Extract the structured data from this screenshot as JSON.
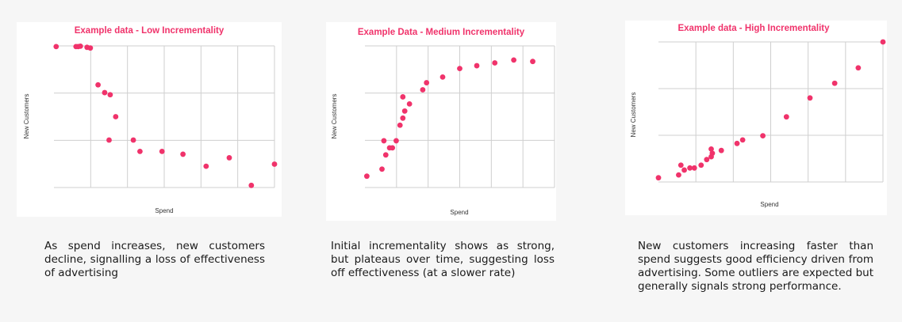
{
  "chart_data": [
    {
      "type": "scatter",
      "title": "Example data - Low Incrementality",
      "xlabel": "Spend",
      "ylabel": "New Customers",
      "xlim": [
        0,
        100
      ],
      "ylim": [
        0,
        100
      ],
      "grid": true,
      "points": [
        {
          "x": 1,
          "y": 99.5
        },
        {
          "x": 10,
          "y": 99.5
        },
        {
          "x": 11,
          "y": 99.5
        },
        {
          "x": 12,
          "y": 99.8
        },
        {
          "x": 15,
          "y": 99
        },
        {
          "x": 16.5,
          "y": 98.5
        },
        {
          "x": 20,
          "y": 72.5
        },
        {
          "x": 23,
          "y": 67
        },
        {
          "x": 25.5,
          "y": 65.5
        },
        {
          "x": 28,
          "y": 50
        },
        {
          "x": 25,
          "y": 33.5
        },
        {
          "x": 36,
          "y": 33.5
        },
        {
          "x": 39,
          "y": 25.5
        },
        {
          "x": 49,
          "y": 25.5
        },
        {
          "x": 58.5,
          "y": 23.5
        },
        {
          "x": 69,
          "y": 15
        },
        {
          "x": 79.5,
          "y": 21
        },
        {
          "x": 89.5,
          "y": 1.5
        },
        {
          "x": 100,
          "y": 16.5
        }
      ]
    },
    {
      "type": "scatter",
      "title": "Example Data - Medium Incrementality",
      "xlabel": "Spend",
      "ylabel": "New Customers",
      "xlim": [
        0,
        100
      ],
      "ylim": [
        0,
        100
      ],
      "grid": true,
      "points": [
        {
          "x": 1,
          "y": 8
        },
        {
          "x": 9,
          "y": 13
        },
        {
          "x": 10,
          "y": 33
        },
        {
          "x": 11,
          "y": 23
        },
        {
          "x": 13,
          "y": 28
        },
        {
          "x": 14.5,
          "y": 28
        },
        {
          "x": 16.5,
          "y": 33
        },
        {
          "x": 18.5,
          "y": 44
        },
        {
          "x": 20,
          "y": 49
        },
        {
          "x": 21,
          "y": 54
        },
        {
          "x": 20,
          "y": 64
        },
        {
          "x": 23.5,
          "y": 59
        },
        {
          "x": 30.5,
          "y": 69
        },
        {
          "x": 32.5,
          "y": 74
        },
        {
          "x": 41,
          "y": 78
        },
        {
          "x": 50,
          "y": 84
        },
        {
          "x": 59,
          "y": 86
        },
        {
          "x": 68.5,
          "y": 88
        },
        {
          "x": 78.5,
          "y": 90
        },
        {
          "x": 88.5,
          "y": 89
        }
      ]
    },
    {
      "type": "scatter",
      "title": "Example data - High Incrementality",
      "xlabel": "Spend",
      "ylabel": "New Customers",
      "xlim": [
        0,
        100
      ],
      "ylim": [
        0,
        100
      ],
      "grid": true,
      "points": [
        {
          "x": 0,
          "y": 3
        },
        {
          "x": 9,
          "y": 5
        },
        {
          "x": 10,
          "y": 12
        },
        {
          "x": 11.5,
          "y": 8.5
        },
        {
          "x": 14,
          "y": 10
        },
        {
          "x": 16,
          "y": 10
        },
        {
          "x": 19,
          "y": 12
        },
        {
          "x": 21.5,
          "y": 16
        },
        {
          "x": 23.5,
          "y": 18
        },
        {
          "x": 24,
          "y": 20.5
        },
        {
          "x": 23.5,
          "y": 23.5
        },
        {
          "x": 28,
          "y": 22.5
        },
        {
          "x": 35,
          "y": 27.5
        },
        {
          "x": 37.5,
          "y": 30
        },
        {
          "x": 46.5,
          "y": 33
        },
        {
          "x": 57,
          "y": 46.5
        },
        {
          "x": 67.5,
          "y": 60
        },
        {
          "x": 78.5,
          "y": 70.5
        },
        {
          "x": 89,
          "y": 81.5
        },
        {
          "x": 100,
          "y": 100
        }
      ]
    }
  ],
  "descriptions": [
    "As spend increases, new customers decline, signalling a loss of effectiveness of advertising",
    "Initial incrementality shows as strong, but plateaus over time, suggesting loss off effectiveness (at a slower rate)",
    "New customers increasing faster than spend suggests good efficiency driven from advertising. Some outliers are expected but generally signals strong performance."
  ],
  "colors": {
    "accent": "#f0336b",
    "grid": "#cfcfcf",
    "background": "#f6f6f6",
    "card": "#ffffff"
  }
}
